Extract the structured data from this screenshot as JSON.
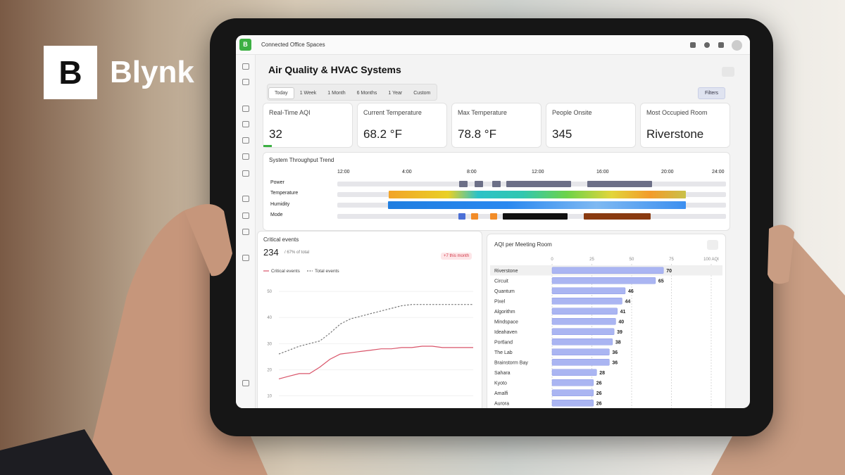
{
  "brand": {
    "logo_letter": "B",
    "name": "Blynk"
  },
  "app": {
    "logo_letter": "B",
    "workspace": "Connected Office Spaces"
  },
  "dashboard": {
    "title": "Air Quality & HVAC Systems",
    "time_ranges": [
      "Today",
      "1 Week",
      "1 Month",
      "6 Months",
      "1 Year",
      "Custom"
    ],
    "active_range": 0,
    "filters": "Filters",
    "kpis": [
      {
        "label": "Real-Time AQI",
        "value": "32"
      },
      {
        "label": "Current Temperature",
        "value": "68.2 °F"
      },
      {
        "label": "Max Temperature",
        "value": "78.8 °F"
      },
      {
        "label": "People Onsite",
        "value": "345"
      },
      {
        "label": "Most Occupied Room",
        "value": "Riverstone"
      }
    ],
    "throughput": {
      "title": "System Throughput Trend",
      "time_labels": [
        "12:00",
        "4:00",
        "8:00",
        "12:00",
        "16:00",
        "20:00",
        "24:00"
      ],
      "rows": [
        "Power",
        "Temperature",
        "Humidity",
        "Mode"
      ]
    },
    "critical_events": {
      "type": "line",
      "title": "Critical events",
      "total": "234",
      "total_note": "/ 67% of total",
      "badge": "+7 this month",
      "ylim": [
        5,
        53
      ],
      "yticks": [
        10,
        20,
        30,
        40,
        50
      ],
      "series": [
        {
          "name": "Critical events",
          "color": "#d9556a",
          "dashed": false,
          "values": [
            16.5,
            17.5,
            18.5,
            18.5,
            21,
            24,
            26,
            26.5,
            27,
            27.5,
            28,
            28,
            28.5,
            28.5,
            29,
            29,
            28.5,
            28.5,
            28.5,
            28.5
          ]
        },
        {
          "name": "Total events",
          "color": "#777777",
          "dashed": true,
          "values": [
            26,
            27.5,
            29,
            30,
            31,
            34,
            37.5,
            39.5,
            40.5,
            41.5,
            42.5,
            43.5,
            44.5,
            45,
            45,
            45,
            45,
            45,
            45,
            45
          ]
        }
      ]
    },
    "aqi_rooms": {
      "type": "hbar",
      "title": "AQI per Meeting Room",
      "color": "#aab5f2",
      "xlim": [
        0,
        100
      ],
      "xticks": [
        0,
        25,
        50,
        75,
        {
          "value": 100,
          "label": "100 AQI"
        }
      ],
      "categories": [
        "Riverstone",
        "Circuit",
        "Quantum",
        "Pixel",
        "Algorithm",
        "Mindspace",
        "Ideahaven",
        "Portland",
        "The Lab",
        "Brainstorm Bay",
        "Sahara",
        "Kyoto",
        "Amalfi",
        "Aurora"
      ],
      "values": [
        70,
        65,
        46,
        44,
        41,
        40,
        39,
        38,
        36,
        36,
        28,
        26,
        26,
        26
      ]
    }
  }
}
